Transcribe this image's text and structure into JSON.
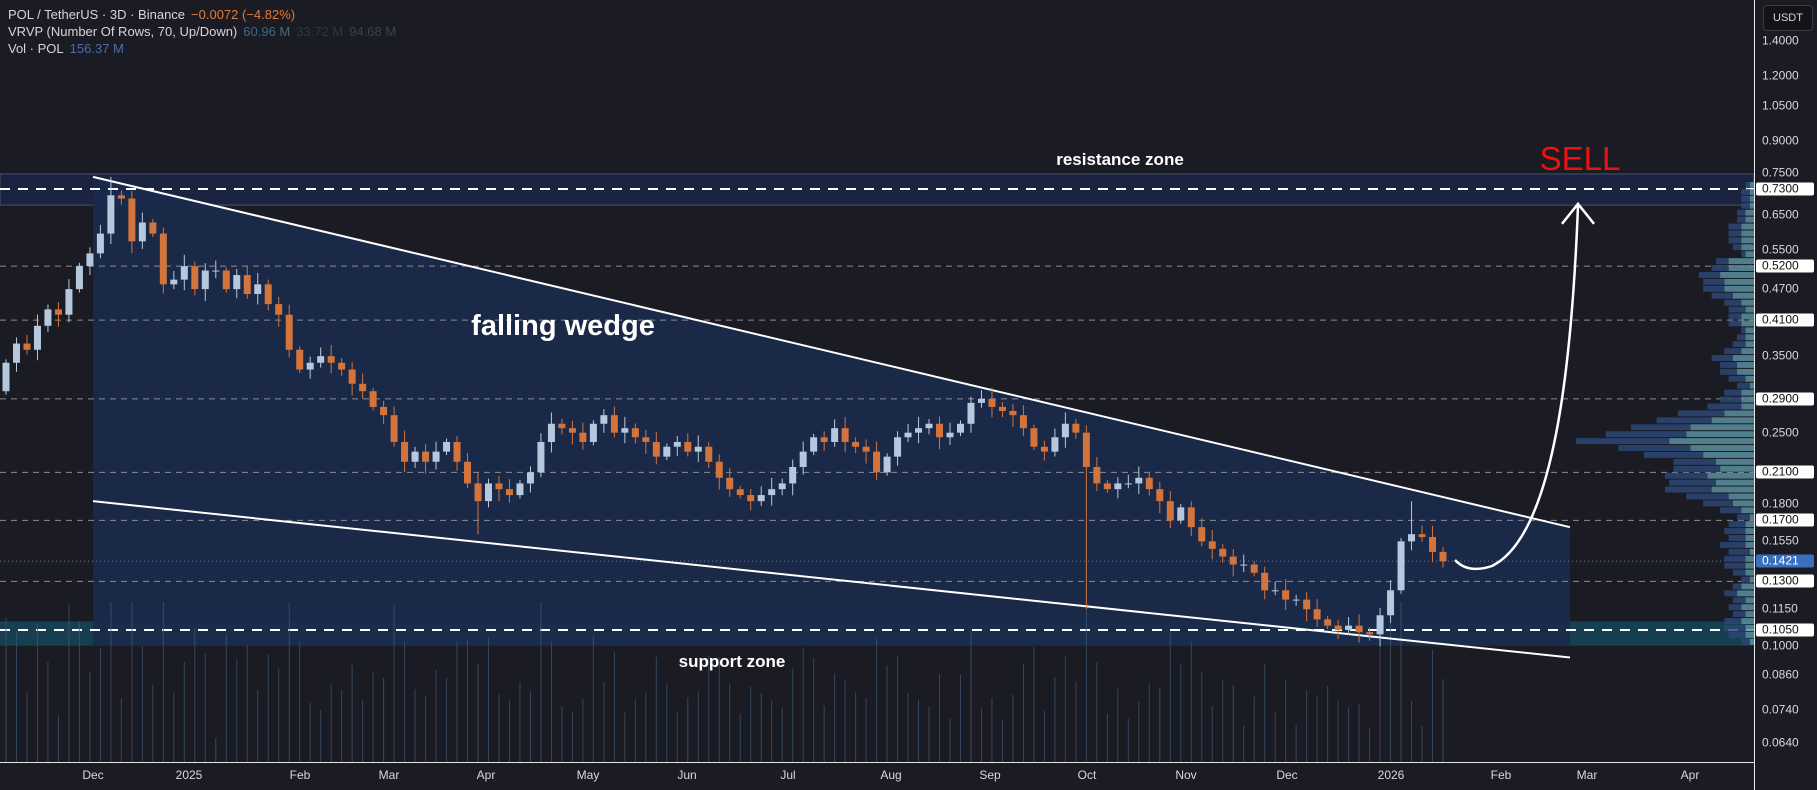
{
  "legend": {
    "symbol": "POL / TetherUS · 3D · Binance",
    "change": "−0.0072 (−4.82%)",
    "vrvp_label": "VRVP (Number Of Rows, 70, Up/Down)",
    "vrvp_up": "60.96 M",
    "vrvp_down": "33.72 M",
    "vrvp_total": "94.68 M",
    "vol_label": "Vol · POL",
    "vol_value": "156.37 M"
  },
  "colors": {
    "background": "#1b1b23",
    "up": "#b6c8de",
    "down": "#d2743c",
    "wedge_fill": "#1a2a4c",
    "change": "#e07b39",
    "sell": "#ee1111",
    "current": "#3a6fc0"
  },
  "chart_data": {
    "type": "candlestick",
    "symbol": "POL/USDT",
    "timeframe": "3D",
    "scale": "log",
    "ylim": [
      0.058,
      1.55
    ],
    "currency_label": "USDT",
    "first_open": 0.3,
    "closes": [
      0.34,
      0.37,
      0.36,
      0.4,
      0.43,
      0.42,
      0.47,
      0.52,
      0.55,
      0.6,
      0.71,
      0.7,
      0.58,
      0.63,
      0.6,
      0.48,
      0.49,
      0.52,
      0.47,
      0.51,
      0.51,
      0.47,
      0.5,
      0.46,
      0.48,
      0.44,
      0.42,
      0.36,
      0.33,
      0.34,
      0.35,
      0.34,
      0.33,
      0.31,
      0.3,
      0.28,
      0.27,
      0.24,
      0.22,
      0.23,
      0.22,
      0.23,
      0.24,
      0.22,
      0.2,
      0.185,
      0.2,
      0.195,
      0.19,
      0.2,
      0.21,
      0.24,
      0.26,
      0.255,
      0.25,
      0.24,
      0.26,
      0.27,
      0.25,
      0.255,
      0.245,
      0.24,
      0.225,
      0.235,
      0.24,
      0.23,
      0.235,
      0.22,
      0.205,
      0.195,
      0.19,
      0.185,
      0.19,
      0.195,
      0.2,
      0.215,
      0.23,
      0.245,
      0.24,
      0.255,
      0.24,
      0.235,
      0.23,
      0.21,
      0.225,
      0.245,
      0.25,
      0.255,
      0.26,
      0.245,
      0.25,
      0.26,
      0.285,
      0.29,
      0.28,
      0.275,
      0.27,
      0.255,
      0.235,
      0.23,
      0.245,
      0.26,
      0.25,
      0.215,
      0.2,
      0.195,
      0.2,
      0.2,
      0.205,
      0.195,
      0.185,
      0.17,
      0.18,
      0.165,
      0.155,
      0.15,
      0.145,
      0.14,
      0.14,
      0.135,
      0.125,
      0.125,
      0.12,
      0.12,
      0.115,
      0.11,
      0.107,
      0.105,
      0.107,
      0.104,
      0.103,
      0.112,
      0.125,
      0.155,
      0.16,
      0.158,
      0.148,
      0.142
    ],
    "notable_wicks": [
      {
        "index": 10,
        "high": 0.77
      },
      {
        "index": 45,
        "low": 0.16
      },
      {
        "index": 103,
        "low": 0.115
      },
      {
        "index": 134,
        "high": 0.185
      }
    ],
    "current_price": 0.1421,
    "price_ticks": [
      "1.4000",
      "1.2000",
      "1.0500",
      "0.9000",
      "0.7500",
      "0.6500",
      "0.5500",
      "0.4700",
      "0.3500",
      "0.2500",
      "0.1800",
      "0.1550",
      "0.1150",
      "0.1000",
      "0.0860",
      "0.0740",
      "0.0640"
    ],
    "level_tags": [
      "0.7300",
      "0.5200",
      "0.4100",
      "0.2900",
      "0.2100",
      "0.1700",
      "0.1300",
      "0.1050"
    ],
    "current_tag": "0.1421",
    "time_ticks": [
      "Dec",
      "2025",
      "Feb",
      "Mar",
      "Apr",
      "May",
      "Jun",
      "Jul",
      "Aug",
      "Sep",
      "Oct",
      "Nov",
      "Dec",
      "2026",
      "Feb",
      "Mar",
      "Apr"
    ],
    "resistance_zone": [
      0.68,
      0.78
    ],
    "support_zone": [
      0.098,
      0.109
    ],
    "wedge": {
      "upper": [
        0.77,
        0.165
      ],
      "lower": [
        0.185,
        0.093
      ]
    },
    "annotations": {
      "resistance": "resistance zone",
      "pattern": "falling wedge",
      "support": "support zone",
      "target": "SELL"
    }
  }
}
